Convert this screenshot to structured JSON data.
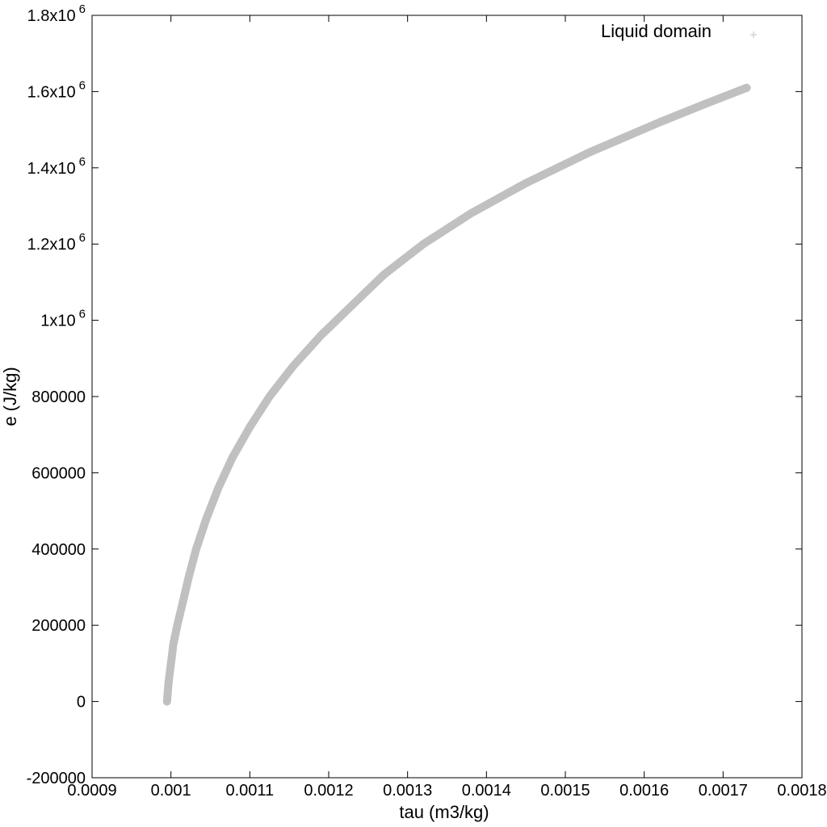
{
  "chart_data": {
    "type": "scatter",
    "title": "",
    "xlabel": "tau (m3/kg)",
    "ylabel": "e (J/kg)",
    "xlim": [
      0.0009,
      0.0018
    ],
    "ylim": [
      -200000,
      1800000
    ],
    "x_ticks": [
      {
        "value": 0.0009,
        "label": "0.0009"
      },
      {
        "value": 0.001,
        "label": "0.001"
      },
      {
        "value": 0.0011,
        "label": "0.0011"
      },
      {
        "value": 0.0012,
        "label": "0.0012"
      },
      {
        "value": 0.0013,
        "label": "0.0013"
      },
      {
        "value": 0.0014,
        "label": "0.0014"
      },
      {
        "value": 0.0015,
        "label": "0.0015"
      },
      {
        "value": 0.0016,
        "label": "0.0016"
      },
      {
        "value": 0.0017,
        "label": "0.0017"
      },
      {
        "value": 0.0018,
        "label": "0.0018"
      }
    ],
    "y_ticks": [
      {
        "value": -200000,
        "label": "-200000"
      },
      {
        "value": 0,
        "label": "0"
      },
      {
        "value": 200000,
        "label": "200000"
      },
      {
        "value": 400000,
        "label": "400000"
      },
      {
        "value": 600000,
        "label": "600000"
      },
      {
        "value": 800000,
        "label": "800000"
      },
      {
        "value": 1000000,
        "label": "1x10",
        "exp": "6"
      },
      {
        "value": 1200000,
        "label": "1.2x10",
        "exp": "6"
      },
      {
        "value": 1400000,
        "label": "1.4x10",
        "exp": "6"
      },
      {
        "value": 1600000,
        "label": "1.6x10",
        "exp": "6"
      },
      {
        "value": 1800000,
        "label": "1.8x10",
        "exp": "6"
      }
    ],
    "grid": false,
    "legend_position": "top-right",
    "series": [
      {
        "name": "Liquid domain",
        "marker": "plus",
        "color": "#c0c0c0",
        "points": [
          {
            "x": 0.000995,
            "y": 0
          },
          {
            "x": 0.000997,
            "y": 50000
          },
          {
            "x": 0.001,
            "y": 100000
          },
          {
            "x": 0.001003,
            "y": 150000
          },
          {
            "x": 0.001008,
            "y": 200000
          },
          {
            "x": 0.001015,
            "y": 260000
          },
          {
            "x": 0.001023,
            "y": 330000
          },
          {
            "x": 0.001032,
            "y": 400000
          },
          {
            "x": 0.001045,
            "y": 480000
          },
          {
            "x": 0.00106,
            "y": 560000
          },
          {
            "x": 0.001078,
            "y": 640000
          },
          {
            "x": 0.0011,
            "y": 720000
          },
          {
            "x": 0.001125,
            "y": 800000
          },
          {
            "x": 0.001155,
            "y": 880000
          },
          {
            "x": 0.00119,
            "y": 960000
          },
          {
            "x": 0.00123,
            "y": 1040000
          },
          {
            "x": 0.00127,
            "y": 1120000
          },
          {
            "x": 0.00132,
            "y": 1200000
          },
          {
            "x": 0.00138,
            "y": 1280000
          },
          {
            "x": 0.00145,
            "y": 1360000
          },
          {
            "x": 0.00153,
            "y": 1440000
          },
          {
            "x": 0.00162,
            "y": 1520000
          },
          {
            "x": 0.00168,
            "y": 1570000
          },
          {
            "x": 0.00173,
            "y": 1610000
          }
        ]
      }
    ]
  }
}
